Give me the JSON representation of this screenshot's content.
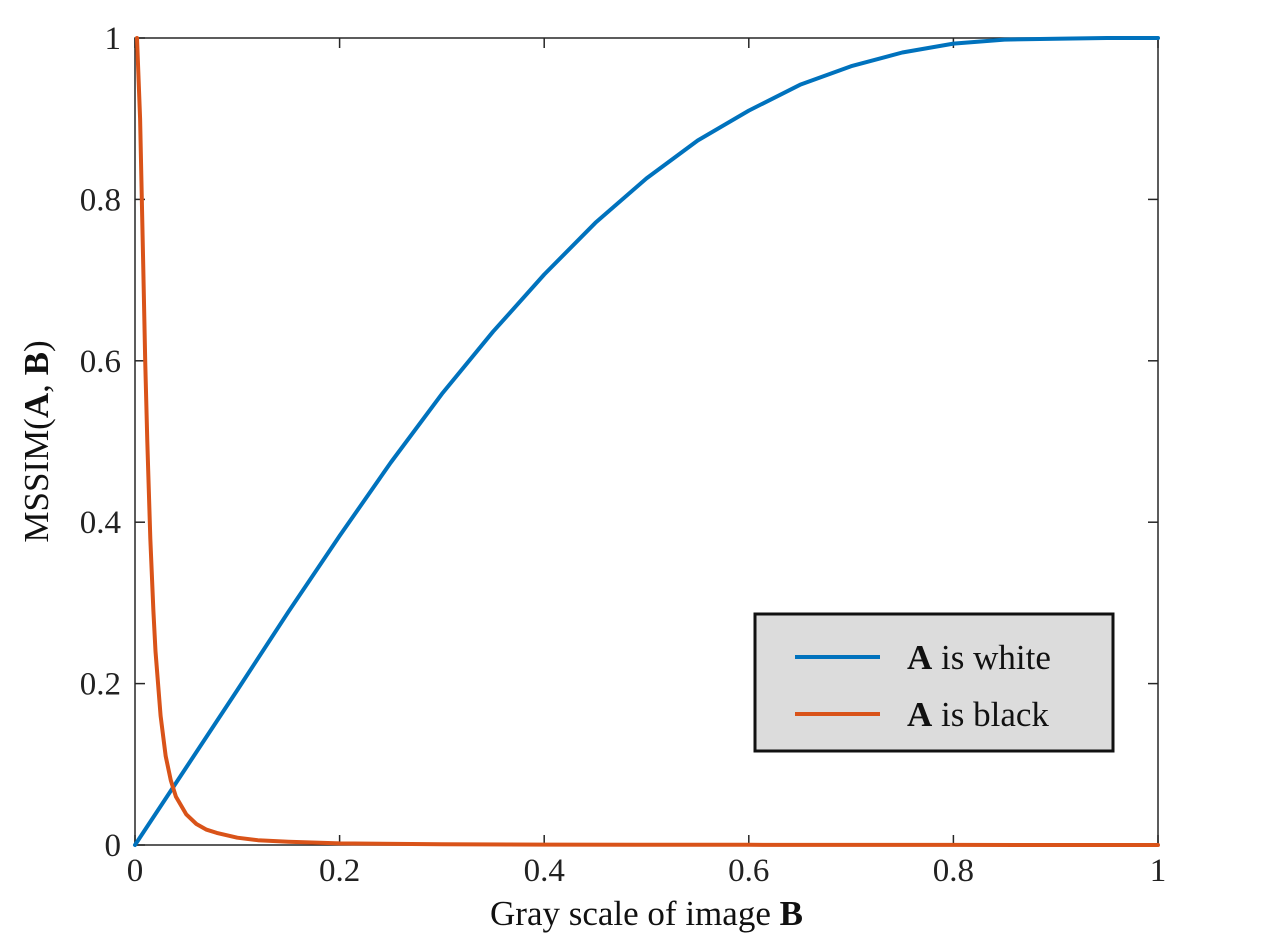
{
  "chart_data": {
    "type": "line",
    "xlabel": {
      "prefix": "Gray scale of image ",
      "bold": "B"
    },
    "ylabel": {
      "prefix": "MSSIM(",
      "bold_a": "A",
      "sep": ", ",
      "bold_b": "B",
      "suffix": ")"
    },
    "xlim": [
      0,
      1
    ],
    "ylim": [
      0,
      1
    ],
    "x_ticks": [
      0,
      0.2,
      0.4,
      0.6,
      0.8,
      1
    ],
    "x_tick_labels": [
      "0",
      "0.2",
      "0.4",
      "0.6",
      "0.8",
      "1"
    ],
    "y_ticks": [
      0,
      0.2,
      0.4,
      0.6,
      0.8,
      1
    ],
    "y_tick_labels": [
      "0",
      "0.2",
      "0.4",
      "0.6",
      "0.8",
      "1"
    ],
    "grid": false,
    "legend_position": "bottom-right",
    "series": [
      {
        "name": "A is white",
        "name_bold": "A",
        "name_rest": " is white",
        "color": "#0072BD",
        "x": [
          0,
          0.05,
          0.1,
          0.15,
          0.2,
          0.25,
          0.3,
          0.35,
          0.4,
          0.45,
          0.5,
          0.55,
          0.6,
          0.65,
          0.7,
          0.75,
          0.8,
          0.85,
          0.9,
          0.95,
          1.0
        ],
        "y": [
          0,
          0.096,
          0.192,
          0.289,
          0.383,
          0.474,
          0.559,
          0.636,
          0.707,
          0.771,
          0.826,
          0.873,
          0.91,
          0.942,
          0.965,
          0.982,
          0.993,
          0.998,
          0.999,
          1.0,
          1.0
        ]
      },
      {
        "name": "A is black",
        "name_bold": "A",
        "name_rest": " is black",
        "color": "#D95319",
        "x": [
          0.002,
          0.005,
          0.008,
          0.01,
          0.012,
          0.015,
          0.018,
          0.02,
          0.025,
          0.03,
          0.035,
          0.04,
          0.05,
          0.06,
          0.07,
          0.08,
          0.1,
          0.12,
          0.15,
          0.2,
          0.3,
          0.4,
          0.5,
          0.6,
          0.7,
          0.8,
          0.9,
          1.0
        ],
        "y": [
          1.0,
          0.9,
          0.72,
          0.6,
          0.5,
          0.38,
          0.29,
          0.24,
          0.16,
          0.11,
          0.08,
          0.06,
          0.038,
          0.026,
          0.019,
          0.015,
          0.009,
          0.006,
          0.004,
          0.002,
          0.001,
          0.0005,
          0.0003,
          0.0002,
          0.0001,
          0.0001,
          0.0,
          0.0
        ]
      }
    ]
  }
}
